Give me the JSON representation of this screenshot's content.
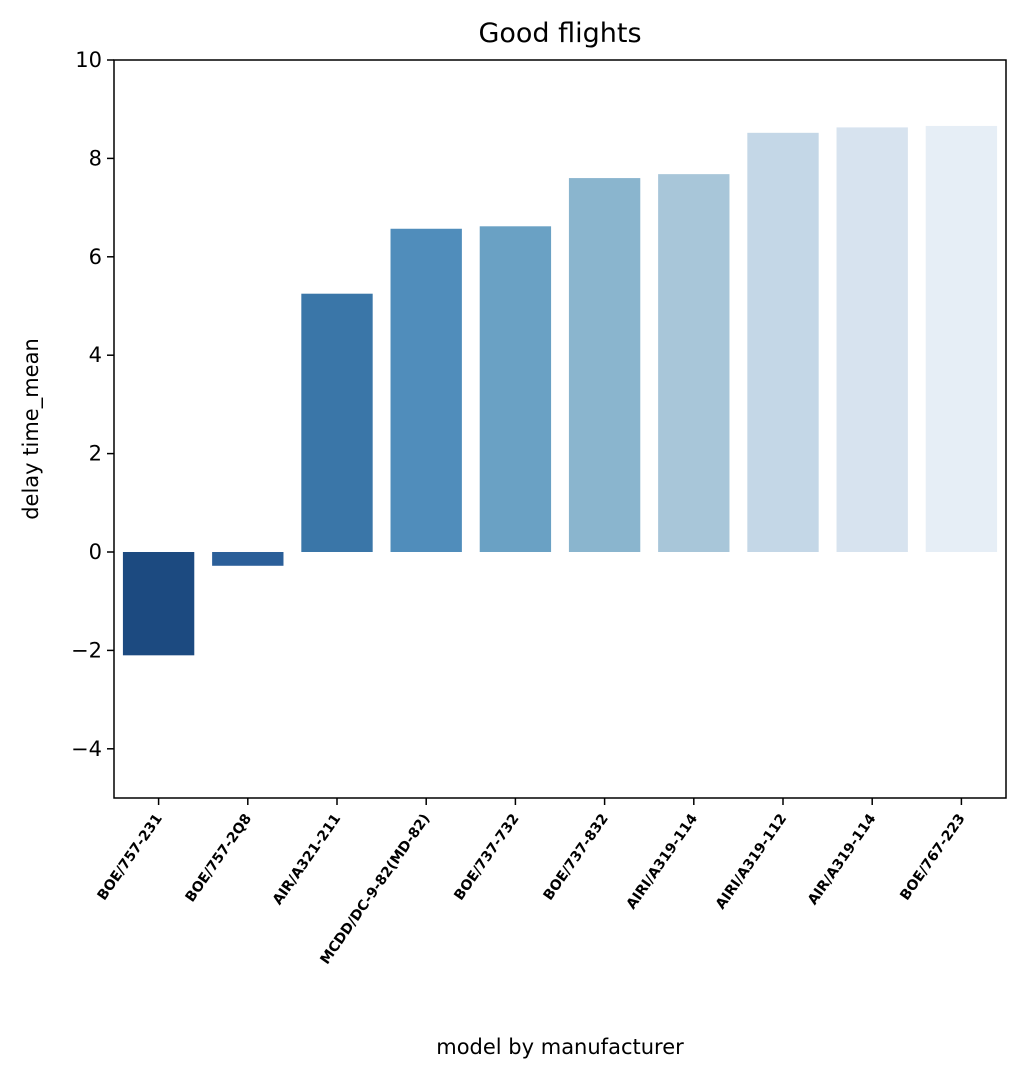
{
  "chart_data": {
    "type": "bar",
    "title": "Good flights",
    "xlabel": "model by manufacturer",
    "ylabel": "delay time_mean",
    "ylim": [
      -5,
      10
    ],
    "yticks": [
      -4,
      -2,
      0,
      2,
      4,
      6,
      8,
      10
    ],
    "ytick_labels": [
      "−4",
      "−2",
      "0",
      "2",
      "4",
      "6",
      "8",
      "10"
    ],
    "grid": false,
    "legend": "none",
    "categories": [
      "BOE/757-231",
      "BOE/757-2Q8",
      "AIR/A321-211",
      "MCDD/DC-9-82(MD-82)",
      "BOE/737-732",
      "BOE/737-832",
      "AIRI/A319-114",
      "AIRI/A319-112",
      "AIR/A319-114",
      "BOE/767-223"
    ],
    "values": [
      -2.1,
      -0.28,
      5.25,
      6.57,
      6.62,
      7.6,
      7.68,
      8.52,
      8.63,
      8.66
    ],
    "colors": [
      "#1c4a80",
      "#2b5f99",
      "#3a76a8",
      "#508dbb",
      "#6aa1c4",
      "#8ab5ce",
      "#a8c6d9",
      "#c4d7e7",
      "#d7e3ef",
      "#e6eef6"
    ]
  }
}
